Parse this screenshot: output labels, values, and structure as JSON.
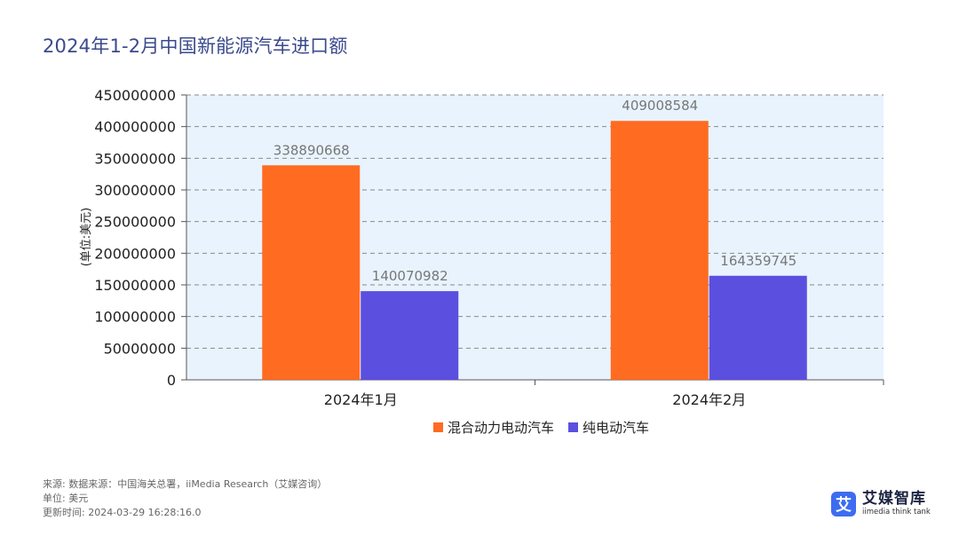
{
  "title": "2024年1-2月中国新能源汽车进口额",
  "chart_data": {
    "type": "bar",
    "categories": [
      "2024年1月",
      "2024年2月"
    ],
    "series": [
      {
        "name": "混合动力电动汽车",
        "values": [
          338890668,
          409008584
        ],
        "color": "#ff6b21"
      },
      {
        "name": "纯电动汽车",
        "values": [
          140070982,
          164359745
        ],
        "color": "#5b4fe0"
      }
    ],
    "ylabel": "(单位:美元)",
    "ylim": [
      0,
      450000000
    ],
    "yticks": [
      "0",
      "50000000",
      "100000000",
      "150000000",
      "200000000",
      "250000000",
      "300000000",
      "350000000",
      "400000000",
      "450000000"
    ],
    "grid": true,
    "legend": "bottom",
    "plot_background": "#e8f3fd"
  },
  "footer": {
    "source": "来源: 数据来源：中国海关总署，iiMedia Research（艾媒咨询）",
    "unit": "单位: 美元",
    "updated": "更新时间: 2024-03-29 16:28:16.0"
  },
  "logo": {
    "mark": "艾",
    "name_cn": "艾媒智库",
    "name_en": "iimedia think tank"
  }
}
